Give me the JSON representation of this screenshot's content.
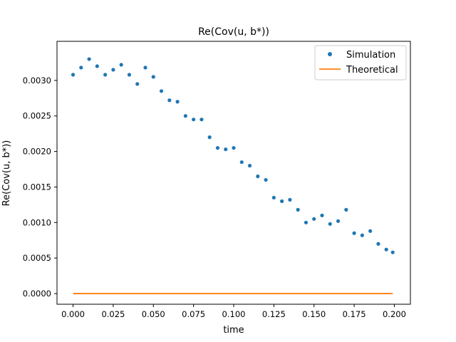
{
  "chart_data": {
    "type": "scatter",
    "title": "Re(Cov(u, b*))",
    "xlabel": "time",
    "ylabel": "Re(Cov(u, b*))",
    "xlim": [
      -0.01,
      0.21
    ],
    "ylim": [
      -0.00015,
      0.00355
    ],
    "xticks": [
      0.0,
      0.025,
      0.05,
      0.075,
      0.1,
      0.125,
      0.15,
      0.175,
      0.2
    ],
    "xtick_labels": [
      "0.000",
      "0.025",
      "0.050",
      "0.075",
      "0.100",
      "0.125",
      "0.150",
      "0.175",
      "0.200"
    ],
    "yticks": [
      0.0,
      0.0005,
      0.001,
      0.0015,
      0.002,
      0.0025,
      0.003
    ],
    "ytick_labels": [
      "0.0000",
      "0.0005",
      "0.0010",
      "0.0015",
      "0.0020",
      "0.0025",
      "0.0030"
    ],
    "grid": false,
    "legend_position": "top-right",
    "series": [
      {
        "name": "Simulation",
        "style": "markers",
        "color": "#1f77b4",
        "x": [
          0.0,
          0.005,
          0.01,
          0.015,
          0.02,
          0.025,
          0.03,
          0.035,
          0.04,
          0.045,
          0.05,
          0.055,
          0.06,
          0.065,
          0.07,
          0.075,
          0.08,
          0.085,
          0.09,
          0.095,
          0.1,
          0.105,
          0.11,
          0.115,
          0.12,
          0.125,
          0.13,
          0.135,
          0.14,
          0.145,
          0.15,
          0.155,
          0.16,
          0.165,
          0.17,
          0.175,
          0.18,
          0.185,
          0.19,
          0.195,
          0.199
        ],
        "y": [
          0.00308,
          0.00318,
          0.0033,
          0.0032,
          0.00308,
          0.00315,
          0.00322,
          0.00308,
          0.00295,
          0.00318,
          0.00305,
          0.00285,
          0.00272,
          0.0027,
          0.0025,
          0.00245,
          0.00245,
          0.0022,
          0.00205,
          0.00203,
          0.00205,
          0.00185,
          0.0018,
          0.00165,
          0.0016,
          0.00135,
          0.0013,
          0.00132,
          0.00118,
          0.001,
          0.00105,
          0.0011,
          0.00098,
          0.00102,
          0.00118,
          0.00085,
          0.00082,
          0.00088,
          0.0007,
          0.00062,
          0.00058
        ]
      },
      {
        "name": "Theoretical",
        "style": "line",
        "color": "#ff7f0e",
        "x": [
          0.0,
          0.199
        ],
        "y": [
          0.0,
          0.0
        ]
      }
    ]
  }
}
